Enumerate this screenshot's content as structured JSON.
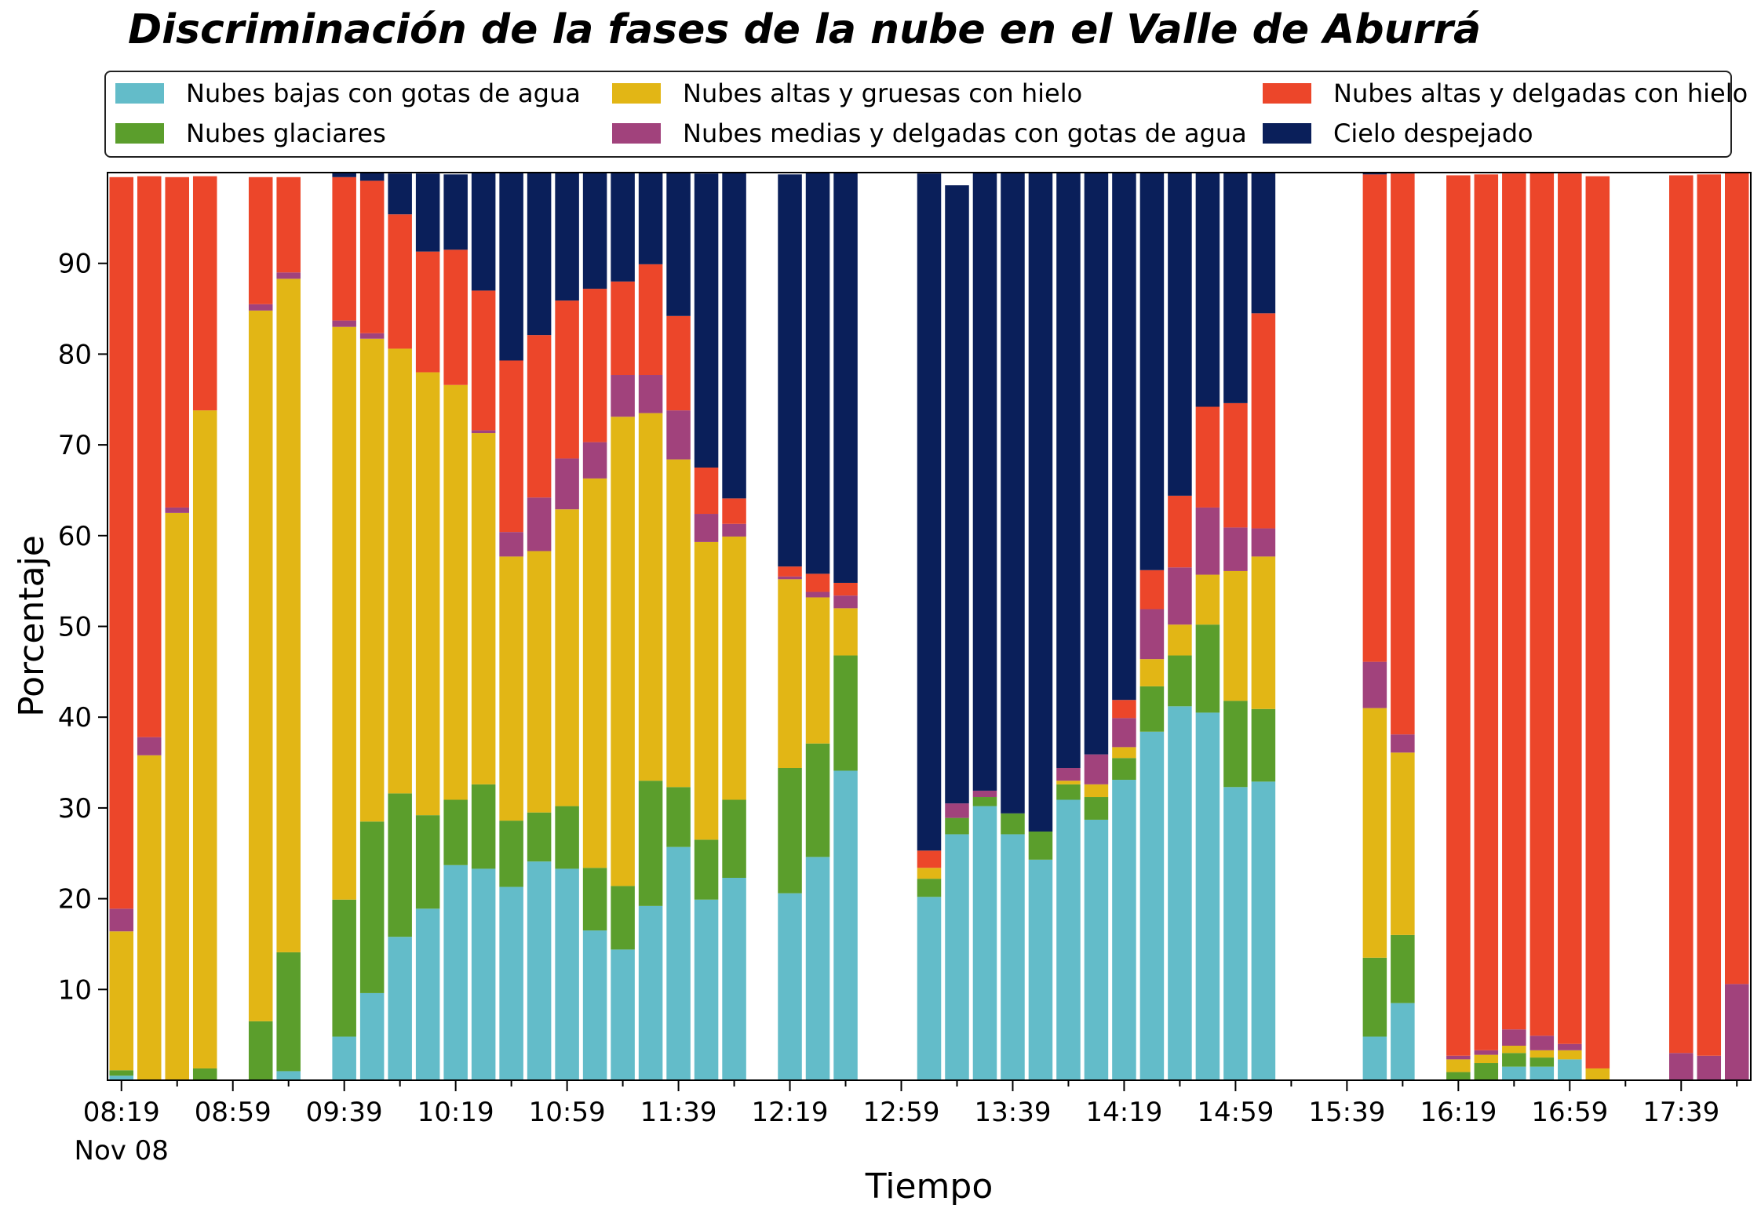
{
  "chart_data": {
    "type": "bar",
    "stacked": true,
    "title": "Discriminación de la fases de la nube en el Valle de Aburrá",
    "xlabel": "Tiempo",
    "ylabel": "Porcentaje",
    "ylim": [
      0,
      100
    ],
    "yticks": [
      10,
      20,
      30,
      40,
      50,
      60,
      70,
      80,
      90
    ],
    "xticks": [
      {
        "slot": 0,
        "label": "08:19",
        "sublabel": "Nov 08"
      },
      {
        "slot": 4,
        "label": "08:59"
      },
      {
        "slot": 8,
        "label": "09:39"
      },
      {
        "slot": 12,
        "label": "10:19"
      },
      {
        "slot": 16,
        "label": "10:59"
      },
      {
        "slot": 20,
        "label": "11:39"
      },
      {
        "slot": 24,
        "label": "12:19"
      },
      {
        "slot": 28,
        "label": "12:59"
      },
      {
        "slot": 32,
        "label": "13:39"
      },
      {
        "slot": 36,
        "label": "14:19"
      },
      {
        "slot": 40,
        "label": "14:59"
      },
      {
        "slot": 44,
        "label": "15:39"
      },
      {
        "slot": 48,
        "label": "16:19"
      },
      {
        "slot": 52,
        "label": "16:59"
      },
      {
        "slot": 56,
        "label": "17:39"
      }
    ],
    "grid": false,
    "legend_position": "top",
    "series": [
      {
        "name": "Nubes bajas con gotas de agua",
        "color": "#63bcc9",
        "values": [
          0.5,
          0,
          0,
          0,
          null,
          0,
          1,
          null,
          4.8,
          9.6,
          15.8,
          18.9,
          23.7,
          23.3,
          21.3,
          24.1,
          23.3,
          16.5,
          14.4,
          19.2,
          25.7,
          19.9,
          22.3,
          null,
          20.6,
          24.6,
          34.1,
          null,
          null,
          20.2,
          27.1,
          30.2,
          27.1,
          24.3,
          30.9,
          28.7,
          33.1,
          38.4,
          41.2,
          40.5,
          32.3,
          32.9,
          null,
          null,
          null,
          4.8,
          8.5,
          null,
          0,
          0,
          1.5,
          1.5,
          2.3,
          0,
          null,
          null,
          0,
          0,
          0
        ]
      },
      {
        "name": "Nubes glaciares",
        "color": "#5b9e2c",
        "values": [
          0.6,
          0,
          0,
          1.3,
          null,
          6.5,
          13.1,
          null,
          15.1,
          18.9,
          15.8,
          10.3,
          7.2,
          9.3,
          7.3,
          5.4,
          6.9,
          6.9,
          7,
          13.8,
          6.6,
          6.6,
          8.6,
          null,
          13.8,
          12.5,
          12.7,
          null,
          null,
          2,
          1.8,
          1,
          2.3,
          3.1,
          1.7,
          2.5,
          2.4,
          5,
          5.6,
          9.7,
          9.5,
          8,
          null,
          null,
          null,
          8.7,
          7.5,
          null,
          0.9,
          1.9,
          1.5,
          1,
          0,
          0,
          null,
          null,
          0,
          0,
          0
        ]
      },
      {
        "name": "Nubes altas y gruesas con hielo",
        "color": "#e2b615",
        "values": [
          15.3,
          35.8,
          62.5,
          72.5,
          null,
          78.3,
          74.2,
          null,
          63.1,
          53.2,
          49,
          48.8,
          45.7,
          38.7,
          29.1,
          28.8,
          32.7,
          42.9,
          51.7,
          40.5,
          36.1,
          32.8,
          29,
          null,
          20.8,
          16.1,
          5.2,
          null,
          null,
          1.2,
          0,
          0,
          0,
          0,
          0.4,
          1.4,
          1.2,
          3,
          3.4,
          5.5,
          14.3,
          16.8,
          null,
          null,
          null,
          27.5,
          20.1,
          null,
          1.4,
          0.9,
          0.8,
          0.8,
          1,
          1.3,
          null,
          null,
          0,
          0,
          0
        ]
      },
      {
        "name": "Nubes medias y delgadas con gotas de agua",
        "color": "#a1427c",
        "values": [
          2.5,
          2,
          0.6,
          0,
          null,
          0.7,
          0.7,
          null,
          0.7,
          0.6,
          0,
          0,
          0,
          0.3,
          2.7,
          5.9,
          5.6,
          4,
          4.6,
          4.2,
          5.4,
          3.1,
          1.4,
          null,
          0.3,
          0.6,
          1.4,
          null,
          null,
          0,
          1.6,
          0.7,
          0,
          0,
          1.4,
          3.3,
          3.2,
          5.5,
          6.3,
          7.4,
          4.8,
          3.1,
          null,
          null,
          null,
          5.1,
          2,
          null,
          0.4,
          0.5,
          1.8,
          1.6,
          0.7,
          0,
          null,
          null,
          3,
          2.7,
          10.6
        ]
      },
      {
        "name": "Nubes altas y delgadas con hielo",
        "color": "#ec462a",
        "values": [
          80.6,
          61.8,
          36.4,
          25.8,
          null,
          14,
          10.5,
          null,
          15.8,
          16.8,
          14.8,
          13.3,
          14.9,
          15.4,
          18.9,
          17.9,
          17.4,
          16.9,
          10.3,
          12.2,
          10.4,
          5.1,
          2.8,
          null,
          1.1,
          2,
          1.4,
          null,
          null,
          1.9,
          0,
          0,
          0,
          0,
          0,
          0,
          2,
          4.3,
          7.9,
          11.1,
          13.7,
          23.7,
          null,
          null,
          null,
          53.7,
          61.8,
          null,
          97,
          96.5,
          94.3,
          95.1,
          95.9,
          98.3,
          null,
          null,
          96.7,
          97.1,
          89.4
        ]
      },
      {
        "name": "Cielo despejado",
        "color": "#0a1f5a",
        "values": [
          0,
          0,
          0,
          0,
          null,
          0,
          0,
          null,
          0.6,
          1,
          4.5,
          8.6,
          8.3,
          13,
          20.7,
          17.9,
          14.1,
          12.8,
          12,
          10.3,
          15.8,
          32.4,
          36,
          null,
          43.2,
          44.3,
          45.3,
          null,
          null,
          74.6,
          68.1,
          68.1,
          70.6,
          72.6,
          65.6,
          64.1,
          58.1,
          43.8,
          35.6,
          25.8,
          25.4,
          15.5,
          null,
          null,
          null,
          0.3,
          0.3,
          null,
          0,
          0,
          0,
          0,
          0,
          0,
          null,
          null,
          0,
          0,
          0
        ]
      }
    ]
  }
}
